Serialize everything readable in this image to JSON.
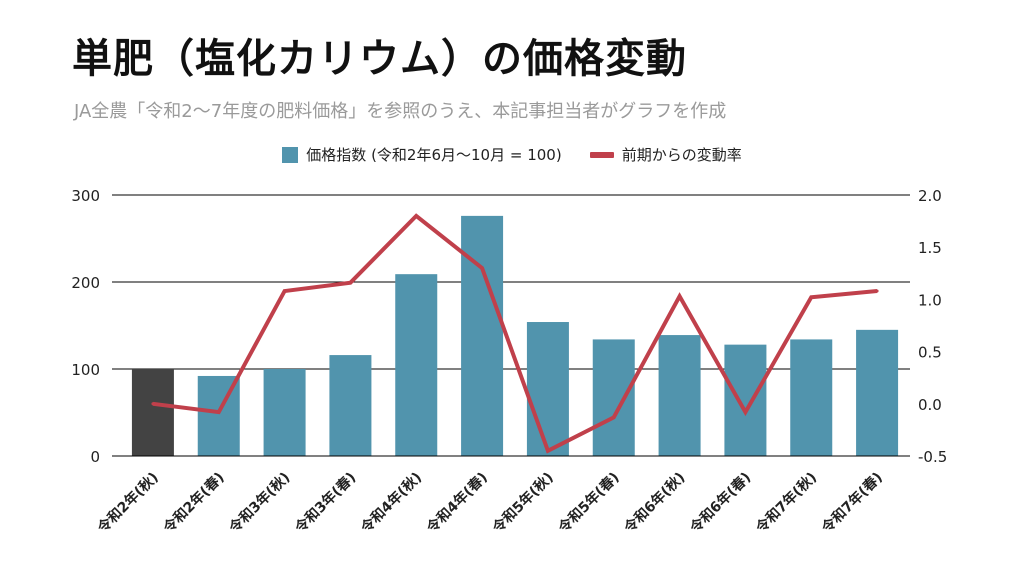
{
  "title": "単肥（塩化カリウム）の価格変動",
  "subtitle": "JA全農「令和2〜7年度の肥料価格」を参照のうえ、本記事担当者がグラフを作成",
  "colors": {
    "bar": "#5194ad",
    "bar_highlight": "#434343",
    "line": "#c0404b",
    "grid": "#000000"
  },
  "chart_data": {
    "type": "bar+line",
    "categories": [
      "令和2年(秋)",
      "令和2年(春)",
      "令和3年(秋)",
      "令和3年(春)",
      "令和4年(秋)",
      "令和4年(春)",
      "令和5年(秋)",
      "令和5年(春)",
      "令和6年(秋)",
      "令和6年(春)",
      "令和7年(秋)",
      "令和7年(春)"
    ],
    "series": [
      {
        "name": "価格指数 (令和2年6月〜10月 = 100)",
        "type": "bar",
        "axis": "left",
        "values": [
          100,
          92,
          100,
          116,
          209,
          276,
          154,
          134,
          139,
          128,
          134,
          145
        ],
        "highlight_index": 0
      },
      {
        "name": "前期からの変動率",
        "type": "line",
        "axis": "right",
        "values": [
          0.0,
          -0.08,
          1.08,
          1.16,
          1.8,
          1.3,
          -0.45,
          -0.13,
          1.03,
          -0.08,
          1.02,
          1.08
        ]
      }
    ],
    "y_left": {
      "min": 0,
      "max": 300,
      "ticks": [
        0,
        100,
        200,
        300
      ]
    },
    "y_right": {
      "min": -0.5,
      "max": 2.0,
      "ticks": [
        "-0.5",
        "0.0",
        "0.5",
        "1.0",
        "1.5",
        "2.0"
      ]
    },
    "gridlines": true,
    "legend_position": "top"
  }
}
